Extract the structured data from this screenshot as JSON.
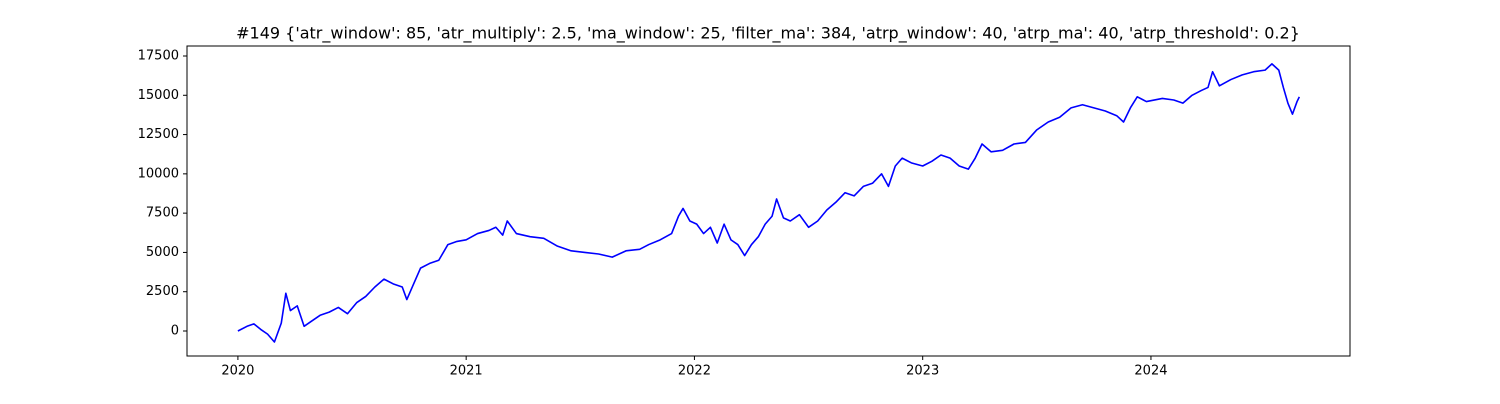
{
  "chart_data": {
    "type": "line",
    "title": "#149 {'atr_window': 85, 'atr_multiply': 2.5, 'ma_window': 25, 'filter_ma': 384, 'atrp_window': 40, 'atrp_ma': 40, 'atrp_threshold': 0.2}",
    "series": [
      {
        "color": "#0000ff",
        "x": [
          2020.0,
          2020.04,
          2020.07,
          2020.1,
          2020.13,
          2020.16,
          2020.19,
          2020.21,
          2020.23,
          2020.26,
          2020.29,
          2020.32,
          2020.36,
          2020.4,
          2020.44,
          2020.48,
          2020.52,
          2020.56,
          2020.6,
          2020.64,
          2020.68,
          2020.72,
          2020.74,
          2020.77,
          2020.8,
          2020.84,
          2020.88,
          2020.92,
          2020.96,
          2021.0,
          2021.05,
          2021.1,
          2021.13,
          2021.16,
          2021.18,
          2021.22,
          2021.28,
          2021.34,
          2021.4,
          2021.46,
          2021.52,
          2021.58,
          2021.64,
          2021.7,
          2021.76,
          2021.8,
          2021.85,
          2021.9,
          2021.93,
          2021.95,
          2021.98,
          2022.01,
          2022.04,
          2022.07,
          2022.1,
          2022.13,
          2022.16,
          2022.19,
          2022.22,
          2022.25,
          2022.28,
          2022.31,
          2022.34,
          2022.36,
          2022.39,
          2022.42,
          2022.46,
          2022.5,
          2022.54,
          2022.58,
          2022.62,
          2022.66,
          2022.7,
          2022.74,
          2022.78,
          2022.82,
          2022.85,
          2022.88,
          2022.91,
          2022.95,
          2023.0,
          2023.04,
          2023.08,
          2023.12,
          2023.16,
          2023.2,
          2023.23,
          2023.26,
          2023.3,
          2023.35,
          2023.4,
          2023.45,
          2023.5,
          2023.55,
          2023.6,
          2023.65,
          2023.7,
          2023.75,
          2023.8,
          2023.85,
          2023.88,
          2023.91,
          2023.94,
          2023.98,
          2024.05,
          2024.1,
          2024.14,
          2024.18,
          2024.22,
          2024.25,
          2024.27,
          2024.3,
          2024.35,
          2024.4,
          2024.45,
          2024.5,
          2024.53,
          2024.56,
          2024.58,
          2024.6,
          2024.62,
          2024.64,
          2024.65
        ],
        "values": [
          0,
          300,
          450,
          100,
          -200,
          -700,
          500,
          2400,
          1300,
          1600,
          300,
          600,
          1000,
          1200,
          1500,
          1100,
          1800,
          2200,
          2800,
          3300,
          3000,
          2800,
          2000,
          3000,
          4000,
          4300,
          4500,
          5500,
          5700,
          5800,
          6200,
          6400,
          6600,
          6100,
          7000,
          6200,
          6000,
          5900,
          5400,
          5100,
          5000,
          4900,
          4700,
          5100,
          5200,
          5500,
          5800,
          6200,
          7300,
          7800,
          7000,
          6800,
          6200,
          6600,
          5600,
          6800,
          5800,
          5500,
          4800,
          5500,
          6000,
          6800,
          7300,
          8400,
          7200,
          7000,
          7400,
          6600,
          7000,
          7700,
          8200,
          8800,
          8600,
          9200,
          9400,
          10000,
          9200,
          10500,
          11000,
          10700,
          10500,
          10800,
          11200,
          11000,
          10500,
          10300,
          11000,
          11900,
          11400,
          11500,
          11900,
          12000,
          12800,
          13300,
          13600,
          14200,
          14400,
          14200,
          14000,
          13700,
          13300,
          14200,
          14900,
          14600,
          14800,
          14700,
          14500,
          15000,
          15300,
          15500,
          16500,
          15600,
          16000,
          16300,
          16500,
          16600,
          17000,
          16600,
          15500,
          14500,
          13800,
          14600,
          14900
        ]
      }
    ],
    "xlim": [
      2019.777,
      2024.872
    ],
    "xticks": [
      2020,
      2021,
      2022,
      2023,
      2024
    ],
    "ylim": [
      -1591,
      18136
    ],
    "yticks": [
      0,
      2500,
      5000,
      7500,
      10000,
      12500,
      15000,
      17500
    ]
  }
}
